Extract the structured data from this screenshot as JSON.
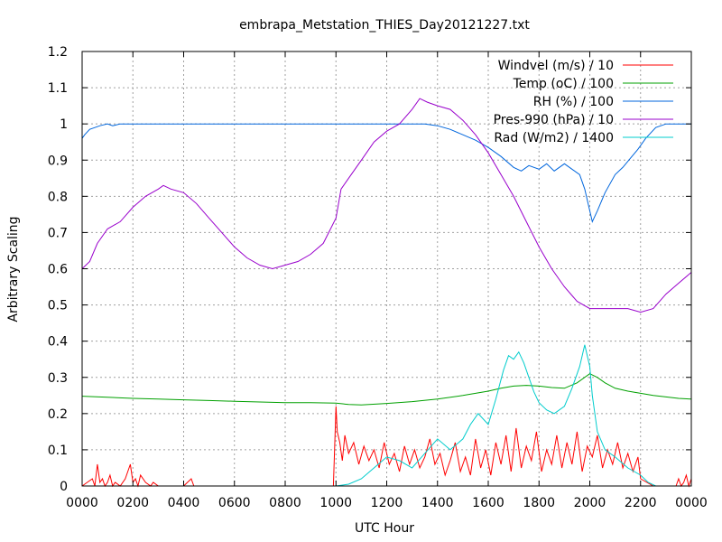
{
  "chart_data": {
    "type": "line",
    "title": "embrapa_Metstation_THIES_Day20121227.txt",
    "xlabel": "UTC Hour",
    "ylabel": "Arbitrary Scaling",
    "xlim": [
      0,
      24
    ],
    "ylim": [
      0,
      1.2
    ],
    "grid": true,
    "legend_position": "top-right",
    "x_tick_labels": [
      "0000",
      "0200",
      "0400",
      "0600",
      "0800",
      "1000",
      "1200",
      "1400",
      "1600",
      "1800",
      "2000",
      "2200",
      "0000"
    ],
    "y_tick_labels": [
      "0",
      "0.1",
      "0.2",
      "0.3",
      "0.4",
      "0.5",
      "0.6",
      "0.7",
      "0.8",
      "0.9",
      "1",
      "1.1",
      "1.2"
    ],
    "series": [
      {
        "name": "Windvel (m/s) / 10",
        "color": "#ff0000",
        "x": [
          0,
          0.4,
          0.5,
          0.6,
          0.7,
          0.8,
          0.9,
          1.0,
          1.1,
          1.2,
          1.3,
          1.5,
          1.7,
          1.9,
          2.0,
          2.1,
          2.2,
          2.3,
          2.5,
          2.7,
          2.8,
          3.0,
          3.5,
          4.0,
          4.3,
          4.4,
          4.5,
          5.0,
          6.0,
          7.0,
          8.0,
          9.0,
          9.9,
          10.0,
          10.05,
          10.15,
          10.25,
          10.35,
          10.5,
          10.7,
          10.9,
          11.1,
          11.3,
          11.5,
          11.7,
          11.9,
          12.1,
          12.3,
          12.5,
          12.7,
          12.9,
          13.1,
          13.3,
          13.5,
          13.7,
          13.9,
          14.1,
          14.3,
          14.5,
          14.7,
          14.9,
          15.1,
          15.3,
          15.5,
          15.7,
          15.9,
          16.1,
          16.3,
          16.5,
          16.7,
          16.9,
          17.1,
          17.3,
          17.5,
          17.7,
          17.9,
          18.1,
          18.3,
          18.5,
          18.7,
          18.9,
          19.1,
          19.3,
          19.5,
          19.7,
          19.9,
          20.1,
          20.3,
          20.5,
          20.7,
          20.9,
          21.1,
          21.3,
          21.5,
          21.7,
          21.9,
          22.0,
          22.5,
          23.0,
          23.4,
          23.5,
          23.6,
          23.7,
          23.8,
          23.9,
          24.0
        ],
        "values": [
          0,
          0.02,
          0,
          0.06,
          0.01,
          0.02,
          0,
          0.01,
          0.03,
          0,
          0.01,
          0,
          0.02,
          0.06,
          0.01,
          0.02,
          0,
          0.03,
          0.01,
          0,
          0.01,
          0,
          0,
          0,
          0.02,
          0,
          0,
          0,
          0,
          0,
          0,
          0,
          0,
          0.22,
          0.15,
          0.12,
          0.07,
          0.14,
          0.09,
          0.12,
          0.06,
          0.11,
          0.07,
          0.1,
          0.05,
          0.12,
          0.06,
          0.09,
          0.04,
          0.11,
          0.06,
          0.1,
          0.05,
          0.08,
          0.13,
          0.06,
          0.09,
          0.03,
          0.07,
          0.12,
          0.04,
          0.08,
          0.03,
          0.13,
          0.05,
          0.1,
          0.03,
          0.12,
          0.06,
          0.14,
          0.04,
          0.16,
          0.05,
          0.11,
          0.07,
          0.15,
          0.04,
          0.1,
          0.06,
          0.14,
          0.05,
          0.12,
          0.06,
          0.15,
          0.04,
          0.11,
          0.08,
          0.14,
          0.05,
          0.1,
          0.06,
          0.12,
          0.05,
          0.09,
          0.04,
          0.08,
          0.02,
          0,
          0,
          0,
          0.02,
          0,
          0.01,
          0.03,
          0,
          0.02
        ]
      },
      {
        "name": "Temp (oC) / 100",
        "color": "#00a000",
        "x": [
          0,
          1,
          2,
          3,
          4,
          5,
          6,
          7,
          8,
          9,
          10,
          10.5,
          11,
          12,
          13,
          14,
          15,
          16,
          16.5,
          17,
          17.5,
          18,
          18.5,
          19,
          19.5,
          20,
          20.3,
          20.6,
          21,
          21.5,
          22,
          22.5,
          23,
          23.5,
          24
        ],
        "values": [
          0.248,
          0.245,
          0.242,
          0.24,
          0.238,
          0.236,
          0.234,
          0.232,
          0.23,
          0.23,
          0.229,
          0.225,
          0.224,
          0.228,
          0.233,
          0.24,
          0.25,
          0.262,
          0.27,
          0.276,
          0.278,
          0.276,
          0.272,
          0.27,
          0.285,
          0.31,
          0.3,
          0.285,
          0.27,
          0.262,
          0.256,
          0.25,
          0.246,
          0.242,
          0.24
        ]
      },
      {
        "name": "RH (%) / 100",
        "color": "#0066dd",
        "x": [
          0,
          0.1,
          0.3,
          0.5,
          0.7,
          1.0,
          1.2,
          1.5,
          2.0,
          3,
          4,
          5,
          6,
          7,
          8,
          9,
          10,
          11,
          12,
          13,
          13.5,
          14,
          14.5,
          15,
          15.5,
          16,
          16.5,
          17,
          17.3,
          17.6,
          18,
          18.3,
          18.6,
          19,
          19.3,
          19.6,
          19.8,
          20.0,
          20.1,
          20.3,
          20.6,
          21,
          21.3,
          21.6,
          21.9,
          22.2,
          22.6,
          23,
          23.5,
          24
        ],
        "values": [
          0.96,
          0.97,
          0.985,
          0.99,
          0.995,
          1.0,
          0.995,
          1.0,
          1.0,
          1.0,
          1.0,
          1.0,
          1.0,
          1.0,
          1.0,
          1.0,
          1.0,
          1.0,
          1.0,
          1.0,
          1.0,
          0.995,
          0.985,
          0.97,
          0.955,
          0.935,
          0.91,
          0.88,
          0.87,
          0.885,
          0.875,
          0.89,
          0.87,
          0.89,
          0.875,
          0.86,
          0.82,
          0.76,
          0.73,
          0.76,
          0.81,
          0.86,
          0.88,
          0.905,
          0.93,
          0.96,
          0.99,
          1.0,
          1.0,
          1.0
        ]
      },
      {
        "name": "Pres-990 (hPa) / 10",
        "color": "#9900cc",
        "x": [
          0,
          0.3,
          0.6,
          1.0,
          1.5,
          2.0,
          2.5,
          3.0,
          3.2,
          3.5,
          4.0,
          4.5,
          5.0,
          5.5,
          6.0,
          6.5,
          7.0,
          7.5,
          8.0,
          8.5,
          9.0,
          9.5,
          10.0,
          10.2,
          10.5,
          11.0,
          11.5,
          12.0,
          12.5,
          13.0,
          13.3,
          13.6,
          14.0,
          14.5,
          15.0,
          15.5,
          16.0,
          16.5,
          17.0,
          17.5,
          18.0,
          18.5,
          19.0,
          19.5,
          20.0,
          20.5,
          21.0,
          21.5,
          22.0,
          22.5,
          23.0,
          23.5,
          24.0
        ],
        "values": [
          0.6,
          0.62,
          0.67,
          0.71,
          0.73,
          0.77,
          0.8,
          0.82,
          0.83,
          0.82,
          0.81,
          0.78,
          0.74,
          0.7,
          0.66,
          0.63,
          0.61,
          0.6,
          0.61,
          0.62,
          0.64,
          0.67,
          0.74,
          0.82,
          0.85,
          0.9,
          0.95,
          0.98,
          1.0,
          1.04,
          1.07,
          1.06,
          1.05,
          1.04,
          1.01,
          0.97,
          0.92,
          0.86,
          0.8,
          0.73,
          0.66,
          0.6,
          0.55,
          0.51,
          0.49,
          0.49,
          0.49,
          0.49,
          0.48,
          0.49,
          0.53,
          0.56,
          0.59
        ]
      },
      {
        "name": "Rad (W/m2) / 1400",
        "color": "#00cccc",
        "x": [
          0,
          2,
          4,
          6,
          8,
          9,
          10,
          10.5,
          11,
          11.5,
          12,
          12.5,
          13,
          13.5,
          14,
          14.5,
          15,
          15.3,
          15.6,
          16,
          16.3,
          16.6,
          16.8,
          17.0,
          17.2,
          17.4,
          17.6,
          17.8,
          18,
          18.3,
          18.6,
          19,
          19.3,
          19.6,
          19.8,
          20.0,
          20.1,
          20.3,
          20.6,
          21,
          21.5,
          22,
          22.3,
          22.6,
          23,
          24
        ],
        "values": [
          0,
          0,
          0,
          0,
          0,
          0,
          0,
          0.005,
          0.02,
          0.05,
          0.08,
          0.07,
          0.05,
          0.09,
          0.13,
          0.1,
          0.13,
          0.17,
          0.2,
          0.17,
          0.24,
          0.32,
          0.36,
          0.35,
          0.37,
          0.34,
          0.3,
          0.26,
          0.23,
          0.21,
          0.2,
          0.22,
          0.27,
          0.33,
          0.39,
          0.33,
          0.25,
          0.15,
          0.1,
          0.08,
          0.05,
          0.03,
          0.01,
          0,
          0,
          0
        ]
      }
    ]
  }
}
